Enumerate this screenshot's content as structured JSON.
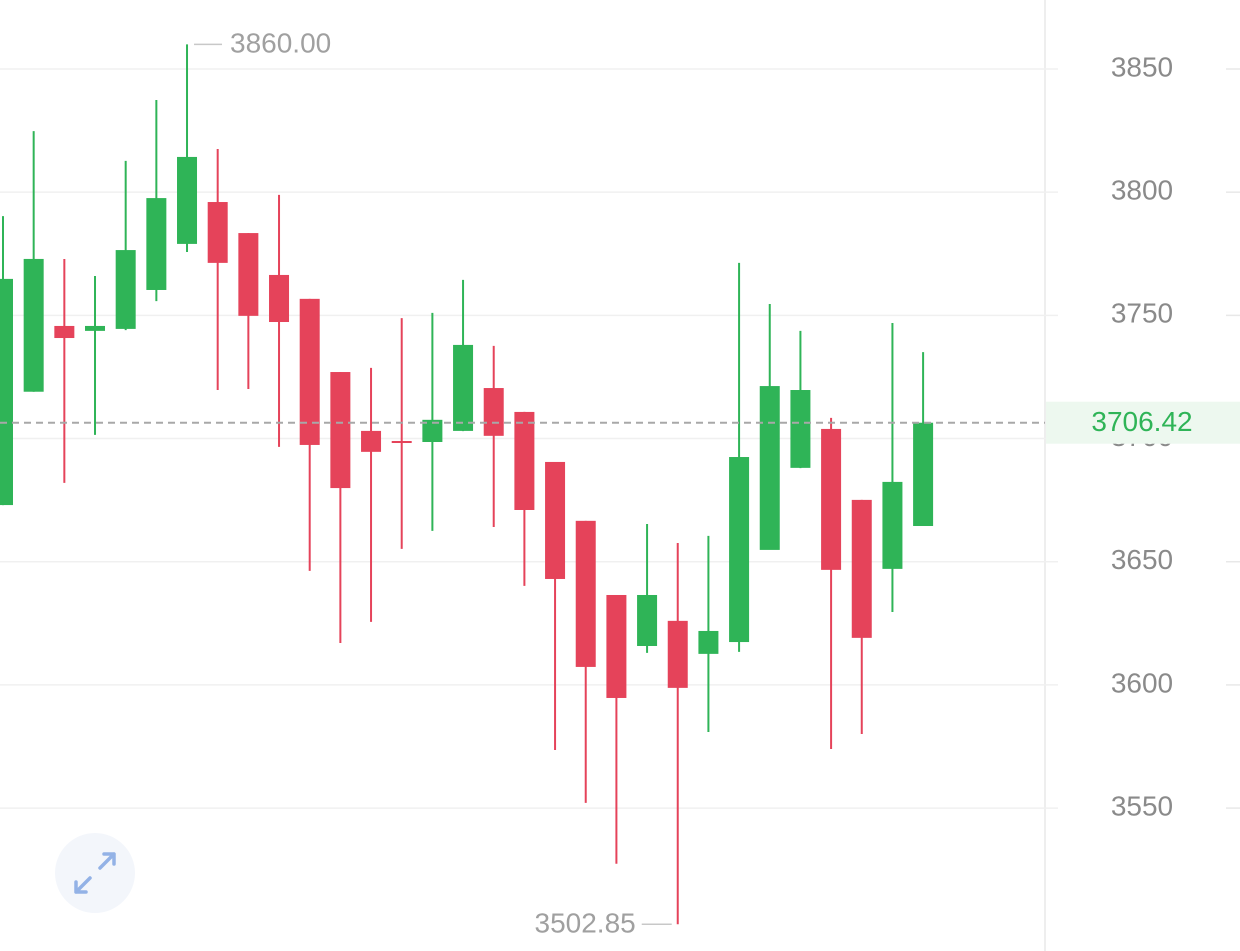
{
  "chart_data": {
    "type": "candlestick",
    "open": [
      3673,
      3719,
      3745.7,
      3743.7,
      3744.5,
      3760.3,
      3779,
      3796,
      3783.4,
      3766.4,
      3756.7,
      3727,
      3703.1,
      3699,
      3698.6,
      3703.1,
      3720.5,
      3710.8,
      3690.5,
      3666.6,
      3636.5,
      3615.8,
      3626,
      3612.6,
      3617.4,
      3654.8,
      3688.1,
      3703.9,
      3675.1,
      3647.1,
      3664.5
    ],
    "high": [
      3790.3,
      3824.8,
      3772.9,
      3766,
      3812.7,
      3837.4,
      3860,
      3817.5,
      3783.4,
      3798.9,
      3756.7,
      3727,
      3728.7,
      3748.9,
      3751,
      3764.4,
      3737.6,
      3710.8,
      3690.5,
      3666.6,
      3636.5,
      3665.3,
      3657.6,
      3660.5,
      3771.3,
      3754.6,
      3743.7,
      3708.4,
      3675.1,
      3746.9,
      3735.1
    ],
    "low": [
      3673,
      3719,
      3682,
      3701.5,
      3744,
      3755.8,
      3775.7,
      3719.7,
      3720.1,
      3696.6,
      3646.3,
      3617,
      3625.6,
      3655.2,
      3662.5,
      3703,
      3664.1,
      3640.2,
      3573.6,
      3552.1,
      3527.4,
      3613,
      3502.85,
      3580.9,
      3613.4,
      3655,
      3688,
      3574,
      3580.1,
      3629.6,
      3664.5
    ],
    "close": [
      3764.8,
      3772.9,
      3740.8,
      3745.7,
      3776.5,
      3797.6,
      3814.3,
      3771.3,
      3749.8,
      3747.3,
      3697.4,
      3679.9,
      3694.6,
      3698.2,
      3707.6,
      3738,
      3701.1,
      3671,
      3643,
      3607.3,
      3594.7,
      3636.5,
      3598.8,
      3621.9,
      3692.5,
      3721.3,
      3719.7,
      3646.7,
      3619.1,
      3682.4,
      3706.42
    ],
    "up_color": "#2fb457",
    "down_color": "#e5435a",
    "ylim": [
      3492,
      3878
    ],
    "yticks": [
      3550,
      3600,
      3650,
      3700,
      3750,
      3800,
      3850
    ],
    "grid": true,
    "last_price": {
      "value": 3706.42,
      "label": "3706.42"
    },
    "annotations": [
      {
        "value": 3860,
        "label": "3860.00"
      },
      {
        "value": 3502.85,
        "label": "3502.85"
      }
    ]
  }
}
